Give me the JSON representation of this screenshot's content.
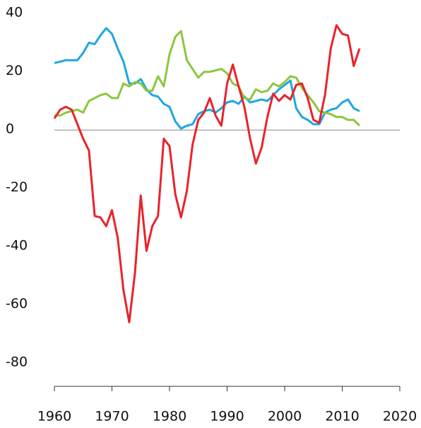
{
  "chart_data": {
    "type": "line",
    "x": [
      1960,
      1961,
      1962,
      1963,
      1964,
      1965,
      1966,
      1967,
      1968,
      1969,
      1970,
      1971,
      1972,
      1973,
      1974,
      1975,
      1976,
      1977,
      1978,
      1979,
      1980,
      1981,
      1982,
      1983,
      1984,
      1985,
      1986,
      1987,
      1988,
      1989,
      1990,
      1991,
      1992,
      1993,
      1994,
      1995,
      1996,
      1997,
      1998,
      1999,
      2000,
      2001,
      2002,
      2003,
      2004,
      2005,
      2006,
      2007,
      2008,
      2009,
      2010,
      2011,
      2012,
      2013
    ],
    "series": [
      {
        "color": "#1ea7e1",
        "values": [
          23,
          23.5,
          24,
          24,
          24,
          26.5,
          30,
          29.5,
          32.5,
          35,
          33,
          28,
          23.5,
          16,
          16,
          17.5,
          14,
          12,
          11.5,
          9,
          8,
          3,
          0.5,
          1.5,
          2,
          5.5,
          6.5,
          7,
          6,
          7.5,
          9.5,
          10,
          9,
          11.5,
          9.5,
          10,
          10.5,
          10,
          12,
          14,
          15.5,
          17,
          7.5,
          4.5,
          3.5,
          2,
          2,
          6,
          7,
          7.5,
          9.5,
          10.5,
          7.5,
          6.5
        ]
      },
      {
        "color": "#8cc63f",
        "values": [
          5,
          5,
          6,
          6.5,
          7,
          6,
          10,
          11,
          12,
          12.5,
          11,
          11,
          16,
          15,
          16.5,
          16,
          13.5,
          13.5,
          18.5,
          15,
          26,
          32,
          34,
          24,
          21,
          18,
          20,
          20,
          20.5,
          21,
          19.5,
          16,
          15,
          11,
          10.5,
          14,
          13,
          13.5,
          16,
          15,
          16.5,
          18.5,
          18,
          14.5,
          12,
          9.5,
          6.5,
          6,
          5.5,
          4.5,
          4.5,
          3.5,
          3.5,
          1.5
        ]
      },
      {
        "color": "#e8232a",
        "values": [
          4,
          7,
          8,
          7,
          2,
          -3,
          -7,
          -29.5,
          -30,
          -33,
          -27.5,
          -37,
          -55,
          -66,
          -49,
          -22.5,
          -41.5,
          -33,
          -29.5,
          -3,
          -5.5,
          -22,
          -30,
          -21,
          -5,
          3.5,
          6,
          11,
          5,
          1.5,
          16,
          22.5,
          15,
          8,
          -3,
          -11.5,
          -6,
          4.5,
          12.5,
          10,
          12,
          10.5,
          15.5,
          16,
          11,
          3.5,
          2.5,
          12,
          28,
          36,
          33,
          32.5,
          22,
          28
        ]
      }
    ],
    "xlim": [
      1960,
      2020
    ],
    "xticks": [
      1960,
      1970,
      1980,
      1990,
      2000,
      2010,
      2020
    ],
    "ylim": [
      -88,
      42
    ],
    "yticks": [
      40,
      20,
      0,
      -20,
      -40,
      -60,
      -80
    ]
  }
}
